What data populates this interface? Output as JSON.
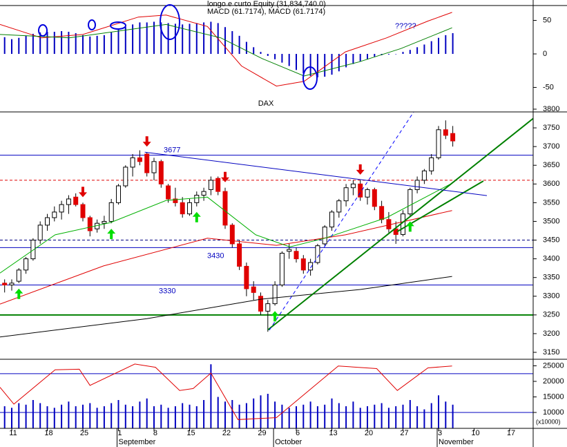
{
  "chart_data": [
    {
      "type": "bar",
      "title": "longo e curto Equity (31,834,740.0)",
      "subtitle": "MACD (61.7174), MACD (61.7174)",
      "annotation": "?????",
      "xlim": [
        -0.65,
        74.3
      ],
      "ylim": [
        -74.2,
        72.2
      ],
      "yticks": [
        -50,
        0,
        50
      ],
      "color": "#0000c0",
      "values": [
        25,
        22,
        24,
        27,
        30,
        32,
        33,
        33,
        34,
        33,
        31,
        28,
        26,
        27,
        28,
        32,
        36,
        40,
        44,
        47,
        47,
        48,
        47,
        46,
        45,
        44,
        45,
        46,
        47,
        48,
        46,
        40,
        34,
        27,
        18,
        10,
        3,
        -3,
        -8,
        -13,
        -18,
        -24,
        -29,
        -33,
        -35,
        -34,
        -31,
        -26,
        -20,
        -15,
        -11,
        -8,
        -4,
        -2,
        -1,
        0,
        3,
        6,
        10,
        14,
        19,
        24,
        28,
        31
      ],
      "lines": [
        {
          "color": "#e00000",
          "x": [
            -0.65,
            5.2,
            11,
            18.8,
            22.7,
            28.5,
            33.3,
            38.2,
            42.1,
            47.9,
            53.7,
            59.5,
            62.9
          ],
          "values": [
            44,
            24,
            29,
            55,
            58,
            41,
            -18,
            -48,
            -41,
            3,
            24,
            49,
            62
          ]
        },
        {
          "color": "#008000",
          "x": [
            -0.65,
            9.1,
            22.7,
            30.4,
            36.2,
            42.1,
            49.8,
            55.7,
            62.9
          ],
          "values": [
            29,
            24,
            44,
            24,
            -7,
            -33,
            -12,
            8,
            39
          ]
        }
      ]
    },
    {
      "type": "candlestick",
      "title": "DAX",
      "xlim": [
        -0.65,
        74.3
      ],
      "ylim": [
        3131.5,
        3792.6
      ],
      "yticks": [
        3150,
        3200,
        3250,
        3300,
        3350,
        3400,
        3450,
        3500,
        3550,
        3600,
        3650,
        3700,
        3750,
        3800
      ],
      "xticks": [
        {
          "value": 1,
          "label": "11"
        },
        {
          "value": 6,
          "label": "18"
        },
        {
          "value": 11,
          "label": "25"
        },
        {
          "value": 16,
          "label": "1"
        },
        {
          "value": 21,
          "label": "8"
        },
        {
          "value": 26,
          "label": "15"
        },
        {
          "value": 31,
          "label": "22"
        },
        {
          "value": 36,
          "label": "29"
        },
        {
          "value": 41,
          "label": "6"
        },
        {
          "value": 46,
          "label": "13"
        },
        {
          "value": 51,
          "label": "20"
        },
        {
          "value": 56,
          "label": "27"
        },
        {
          "value": 61,
          "label": "3"
        },
        {
          "value": 66,
          "label": "10"
        },
        {
          "value": 71,
          "label": "17"
        }
      ],
      "months": [
        {
          "value": 16,
          "label": "September"
        },
        {
          "value": 38,
          "label": "October"
        },
        {
          "value": 61,
          "label": "November"
        }
      ],
      "up_color": "#ffffff",
      "down_color": "#e00000",
      "open": [
        3335,
        3330,
        3340,
        3370,
        3400,
        3450,
        3490,
        3510,
        3525,
        3545,
        3565,
        3545,
        3510,
        3480,
        3495,
        3500,
        3550,
        3595,
        3645,
        3670,
        3680,
        3630,
        3660,
        3595,
        3560,
        3550,
        3520,
        3550,
        3570,
        3585,
        3615,
        3580,
        3490,
        3440,
        3380,
        3325,
        3300,
        3260,
        3280,
        3330,
        3420,
        3420,
        3400,
        3370,
        3390,
        3440,
        3485,
        3525,
        3555,
        3590,
        3600,
        3565,
        3585,
        3540,
        3505,
        3480,
        3465,
        3520,
        3585,
        3610,
        3635,
        3670,
        3745,
        3735
      ],
      "high": [
        3345,
        3345,
        3375,
        3405,
        3455,
        3500,
        3520,
        3540,
        3555,
        3570,
        3575,
        3550,
        3515,
        3505,
        3515,
        3560,
        3600,
        3650,
        3680,
        3690,
        3685,
        3670,
        3665,
        3600,
        3590,
        3565,
        3560,
        3580,
        3590,
        3620,
        3620,
        3590,
        3495,
        3450,
        3390,
        3340,
        3310,
        3290,
        3340,
        3420,
        3440,
        3430,
        3410,
        3400,
        3440,
        3490,
        3530,
        3560,
        3600,
        3610,
        3610,
        3590,
        3590,
        3555,
        3525,
        3500,
        3530,
        3590,
        3620,
        3640,
        3680,
        3755,
        3770,
        3755
      ],
      "low": [
        3310,
        3315,
        3335,
        3360,
        3395,
        3440,
        3475,
        3500,
        3505,
        3520,
        3540,
        3500,
        3460,
        3470,
        3480,
        3495,
        3545,
        3590,
        3620,
        3650,
        3620,
        3610,
        3590,
        3550,
        3540,
        3510,
        3515,
        3540,
        3555,
        3570,
        3570,
        3480,
        3430,
        3370,
        3300,
        3290,
        3250,
        3205,
        3275,
        3325,
        3400,
        3390,
        3360,
        3355,
        3385,
        3435,
        3475,
        3510,
        3540,
        3570,
        3555,
        3545,
        3530,
        3495,
        3470,
        3440,
        3460,
        3515,
        3575,
        3600,
        3625,
        3665,
        3720,
        3700
      ],
      "close": [
        3330,
        3335,
        3370,
        3400,
        3450,
        3490,
        3510,
        3525,
        3545,
        3560,
        3545,
        3510,
        3475,
        3495,
        3500,
        3550,
        3595,
        3645,
        3670,
        3660,
        3630,
        3660,
        3600,
        3560,
        3550,
        3520,
        3550,
        3570,
        3580,
        3610,
        3580,
        3490,
        3440,
        3380,
        3320,
        3310,
        3260,
        3280,
        3330,
        3415,
        3425,
        3400,
        3370,
        3390,
        3435,
        3485,
        3525,
        3555,
        3590,
        3600,
        3565,
        3585,
        3540,
        3505,
        3480,
        3465,
        3520,
        3585,
        3610,
        3635,
        3670,
        3745,
        3730,
        3715
      ],
      "hlines": [
        {
          "value": 3677,
          "color": "#0000c0",
          "labeled": true
        },
        {
          "value": 3610,
          "color": "#e00000",
          "dash": true
        },
        {
          "value": 3450,
          "color": "#000080",
          "dash": true
        },
        {
          "value": 3430,
          "color": "#0000c0",
          "labeled": true
        },
        {
          "value": 3330,
          "color": "#0000c0",
          "labeled": true
        },
        {
          "value": 3250,
          "color": "#008000",
          "width": 2
        }
      ],
      "lines": [
        {
          "color": "#000000",
          "x": [
            -0.65,
            20,
            36,
            50,
            62.9
          ],
          "values": [
            3191,
            3240,
            3292,
            3318,
            3353
          ]
        },
        {
          "color": "#e00000",
          "x": [
            -0.65,
            13.9,
            28.5,
            38.2,
            47.9,
            62.9
          ],
          "values": [
            3279,
            3381,
            3455,
            3436,
            3464,
            3529
          ]
        },
        {
          "color": "#00b000",
          "x": [
            -0.65,
            7.1,
            14.9,
            22.7,
            28.5,
            35.3,
            40.1,
            45,
            53.7,
            62.9
          ],
          "values": [
            3362,
            3464,
            3497,
            3556,
            3565,
            3464,
            3432,
            3455,
            3510,
            3602
          ]
        },
        {
          "color": "#008000",
          "width": 2,
          "x": [
            37,
            74.3
          ],
          "values": [
            3210,
            3775
          ]
        },
        {
          "color": "#008000",
          "width": 2,
          "x": [
            55.2,
            67.3
          ],
          "values": [
            3473,
            3608
          ]
        },
        {
          "color": "#0000ff",
          "dash": true,
          "x": [
            37.2,
            58.6
          ],
          "values": [
            3209,
            3824
          ]
        },
        {
          "color": "#0000c0",
          "x": [
            19.7,
            67.8
          ],
          "values": [
            3685,
            3569
          ]
        }
      ],
      "signals": {
        "buy": [
          2,
          15,
          27,
          38,
          57
        ],
        "sell": [
          11,
          20,
          31,
          50
        ]
      }
    },
    {
      "type": "bar",
      "xlim": [
        -0.65,
        74.3
      ],
      "ylim": [
        4889,
        27111
      ],
      "yticks": [
        10000,
        15000,
        20000,
        25000
      ],
      "y_unit": "(x10000)",
      "y2lim": [
        -4.6,
        102.4
      ],
      "color": "#0000c0",
      "values": [
        12000,
        11500,
        13000,
        12500,
        14000,
        13000,
        12000,
        11500,
        12500,
        13500,
        12000,
        12500,
        13000,
        11500,
        12000,
        13000,
        14000,
        12500,
        12000,
        13500,
        14500,
        12000,
        12500,
        11500,
        12000,
        13000,
        12500,
        12000,
        14000,
        25500,
        15000,
        13500,
        14000,
        12500,
        13000,
        14500,
        15500,
        16000,
        13500,
        12500,
        11500,
        12000,
        12500,
        13500,
        12000,
        12500,
        14500,
        13000,
        12000,
        13500,
        11500,
        12000,
        12500,
        13000,
        11500,
        12000,
        12500,
        14000,
        12000,
        11000,
        13000,
        15500,
        13500,
        12500
      ],
      "levels": [
        {
          "value": 80,
          "axis": "y2",
          "color": "#0000c0"
        },
        {
          "value": 20,
          "axis": "y2",
          "color": "#0000c0"
        }
      ],
      "lines": [
        {
          "color": "#e00000",
          "axis": "y2",
          "x": [
            -0.65,
            1.3,
            7.1,
            10.5,
            12,
            18.3,
            21.2,
            24.6,
            26.5,
            29,
            32.8,
            38.2,
            46.9,
            52.3,
            55.2,
            59.5,
            62.9
          ],
          "values": [
            59,
            33,
            86,
            87,
            62,
            95,
            90,
            54,
            57,
            81,
            9,
            12,
            92,
            88,
            54,
            89,
            92
          ]
        }
      ]
    }
  ]
}
